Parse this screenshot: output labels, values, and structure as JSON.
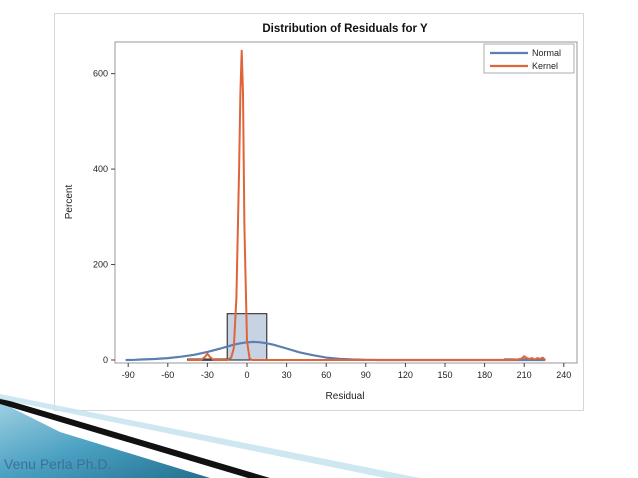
{
  "author": "Venu Perla Ph.D.",
  "chart_data": {
    "type": "histogram",
    "title": "Distribution of Residuals for Y",
    "xlabel": "Residual",
    "ylabel": "Percent",
    "xlim": [
      -100,
      250
    ],
    "ylim": [
      0,
      660
    ],
    "xticks": [
      -90,
      -60,
      -30,
      0,
      30,
      60,
      90,
      120,
      150,
      180,
      210,
      240
    ],
    "yticks": [
      0,
      200,
      400,
      600
    ],
    "grid": false,
    "legend_position": "top-right",
    "bins": [
      {
        "x0": -45,
        "x1": -15,
        "value": 2
      },
      {
        "x0": -15,
        "x1": 15,
        "value": 97
      },
      {
        "x0": 195,
        "x1": 225,
        "value": 2
      }
    ],
    "series": [
      {
        "name": "Normal",
        "color": "#5b7fae",
        "x": [
          -92,
          -85,
          -80,
          -70,
          -60,
          -50,
          -40,
          -30,
          -20,
          -15,
          -10,
          -5,
          0,
          5,
          10,
          15,
          20,
          30,
          40,
          50,
          60,
          70,
          80,
          90,
          100,
          110,
          120,
          150,
          180,
          210,
          226
        ],
        "y": [
          0,
          0.5,
          1,
          2,
          4,
          7,
          11,
          17,
          24,
          28,
          32,
          35,
          37,
          38,
          37,
          35,
          32,
          24,
          16,
          10,
          5,
          2.5,
          1,
          0.5,
          0,
          0,
          0,
          0,
          0,
          0,
          0
        ]
      },
      {
        "name": "Kernel",
        "color": "#e0643a",
        "x": [
          -45,
          -35,
          -32,
          -30,
          -28,
          -25,
          -20,
          -15,
          -12,
          -10,
          -8,
          -6,
          -5,
          -4,
          -3,
          -2,
          0,
          2,
          4,
          10,
          30,
          100,
          150,
          200,
          205,
          208,
          210,
          212,
          214,
          216,
          218,
          220,
          222,
          224,
          226
        ],
        "y": [
          0,
          0,
          6,
          13,
          6,
          0,
          0,
          0,
          5,
          25,
          130,
          400,
          560,
          648,
          560,
          280,
          40,
          3,
          0,
          0,
          0,
          0,
          0,
          0,
          1,
          3,
          8,
          4,
          2,
          4,
          1,
          4,
          2,
          5,
          0
        ]
      }
    ]
  }
}
